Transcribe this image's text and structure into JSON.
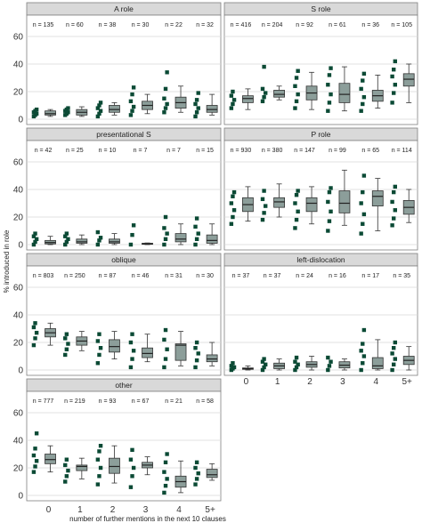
{
  "chart_data": {
    "type": "box",
    "ylabel": "% introduced in role",
    "xlabel": "number of further mentions in the next 10 clauses",
    "categories": [
      "0",
      "1",
      "2",
      "3",
      "4",
      "5+"
    ],
    "yticks": [
      0,
      20,
      40,
      60
    ],
    "ylim": [
      0,
      60
    ],
    "colors": {
      "box": "#8c9e9a",
      "points": "#0b4a35",
      "strip": "#d9d9d9"
    },
    "panels": [
      {
        "title": "A role",
        "n": [
          "n = 135",
          "n = 60",
          "n = 38",
          "n = 30",
          "n = 22",
          "n = 32"
        ],
        "boxes": [
          [
            2,
            3,
            4,
            6,
            7
          ],
          [
            2,
            3,
            5,
            7,
            9
          ],
          [
            3,
            5,
            7,
            10,
            12
          ],
          [
            4,
            7,
            10,
            13,
            18
          ],
          [
            5,
            8,
            12,
            16,
            24
          ],
          [
            3,
            5,
            7,
            10,
            18
          ]
        ],
        "points": [
          [
            2,
            3,
            4,
            5,
            6,
            7
          ],
          [
            3,
            4,
            5,
            6,
            7,
            8
          ],
          [
            2,
            4,
            6,
            8,
            10,
            12
          ],
          [
            3,
            6,
            9,
            13,
            18,
            23
          ],
          [
            5,
            8,
            11,
            15,
            22,
            34
          ],
          [
            2,
            5,
            8,
            11,
            14,
            19
          ]
        ]
      },
      {
        "title": "S role",
        "n": [
          "n = 416",
          "n = 204",
          "n = 92",
          "n = 61",
          "n = 36",
          "n = 105"
        ],
        "boxes": [
          [
            7,
            12,
            15,
            17,
            22
          ],
          [
            14,
            16,
            18,
            21,
            24
          ],
          [
            7,
            14,
            19,
            24,
            34
          ],
          [
            6,
            12,
            18,
            26,
            38
          ],
          [
            8,
            13,
            17,
            21,
            32
          ],
          [
            12,
            24,
            29,
            33,
            40
          ]
        ],
        "points": [
          [
            8,
            11,
            14,
            17,
            20
          ],
          [
            13,
            16,
            19,
            22,
            38
          ],
          [
            8,
            13,
            18,
            24,
            30,
            35
          ],
          [
            6,
            12,
            18,
            25,
            32,
            37
          ],
          [
            6,
            11,
            16,
            22,
            28,
            33
          ],
          [
            12,
            19,
            25,
            31,
            36,
            42
          ]
        ]
      },
      {
        "title": "presentational S",
        "n": [
          "n = 42",
          "n = 25",
          "n = 10",
          "n = 7",
          "n = 7",
          "n = 15"
        ],
        "boxes": [
          [
            0,
            0.5,
            1.5,
            3,
            6
          ],
          [
            0,
            1,
            2,
            4,
            7
          ],
          [
            0,
            1,
            2,
            4,
            8
          ],
          [
            0,
            0.2,
            0.5,
            1,
            1.2
          ],
          [
            0,
            2,
            4,
            8,
            15
          ],
          [
            0,
            1,
            3,
            7,
            15
          ]
        ],
        "points": [
          [
            0,
            2,
            4,
            6,
            8
          ],
          [
            0,
            2,
            4,
            6,
            8
          ],
          [
            0,
            3,
            5,
            9
          ],
          [
            0,
            7,
            14
          ],
          [
            0,
            4,
            8,
            12,
            20
          ],
          [
            0,
            4,
            8,
            13,
            19
          ]
        ]
      },
      {
        "title": "P role",
        "n": [
          "n = 930",
          "n = 380",
          "n = 147",
          "n = 99",
          "n = 65",
          "n = 114"
        ],
        "boxes": [
          [
            17,
            24,
            29,
            34,
            42
          ],
          [
            20,
            27,
            31,
            34,
            44
          ],
          [
            15,
            24,
            30,
            34,
            42
          ],
          [
            14,
            23,
            30,
            39,
            54
          ],
          [
            10,
            28,
            35,
            39,
            48
          ],
          [
            16,
            22,
            27,
            32,
            40
          ]
        ],
        "points": [
          [
            15,
            20,
            25,
            30,
            35,
            38
          ],
          [
            18,
            23,
            28,
            33,
            39
          ],
          [
            12,
            18,
            24,
            30,
            36,
            39
          ],
          [
            10,
            17,
            24,
            31,
            38,
            41
          ],
          [
            8,
            15,
            22,
            30,
            38,
            50
          ],
          [
            14,
            19,
            25,
            31,
            38,
            42
          ]
        ]
      },
      {
        "title": "oblique",
        "n": [
          "n = 803",
          "n = 250",
          "n = 87",
          "n = 46",
          "n = 31",
          "n = 30"
        ],
        "boxes": [
          [
            18,
            24,
            27,
            30,
            34
          ],
          [
            14,
            18,
            21,
            24,
            28
          ],
          [
            8,
            13,
            17,
            22,
            28
          ],
          [
            6,
            9,
            12,
            16,
            26
          ],
          [
            3,
            7,
            18,
            19,
            28
          ],
          [
            3,
            6,
            8,
            11,
            20
          ]
        ],
        "points": [
          [
            18,
            23,
            27,
            31,
            34
          ],
          [
            11,
            15,
            19,
            23,
            26
          ],
          [
            5,
            11,
            16,
            21,
            26
          ],
          [
            2,
            8,
            14,
            20,
            26
          ],
          [
            2,
            8,
            15,
            22,
            29
          ],
          [
            2,
            7,
            12,
            16,
            20
          ]
        ]
      },
      {
        "title": "left-dislocation",
        "n": [
          "n = 37",
          "n = 37",
          "n = 24",
          "n = 16",
          "n = 17",
          "n = 35"
        ],
        "boxes": [
          [
            0,
            0.5,
            1,
            1.5,
            3
          ],
          [
            0,
            1,
            3,
            5,
            8
          ],
          [
            0,
            2,
            4,
            6,
            10
          ],
          [
            0,
            1.5,
            3.5,
            6,
            8
          ],
          [
            0,
            1,
            3,
            9,
            22
          ],
          [
            0,
            4,
            7,
            10,
            17
          ]
        ],
        "points": [
          [
            0,
            1,
            2,
            3,
            5
          ],
          [
            0,
            2,
            4,
            6,
            8
          ],
          [
            0,
            2,
            4,
            6,
            9
          ],
          [
            0,
            3,
            6,
            9
          ],
          [
            0,
            5,
            10,
            14,
            19,
            29
          ],
          [
            0,
            4,
            8,
            12,
            16,
            20
          ]
        ]
      },
      {
        "title": "other",
        "n": [
          "n = 777",
          "n = 219",
          "n = 93",
          "n = 67",
          "n = 21",
          "n = 58"
        ],
        "boxes": [
          [
            17,
            23,
            26,
            30,
            36
          ],
          [
            12,
            18,
            21,
            22,
            27
          ],
          [
            9,
            16,
            21,
            27,
            36
          ],
          [
            15,
            20,
            22,
            24,
            28
          ],
          [
            2,
            6,
            10,
            14,
            25
          ],
          [
            11,
            13,
            15,
            19,
            23
          ]
        ],
        "points": [
          [
            17,
            21,
            25,
            29,
            34,
            45
          ],
          [
            10,
            14,
            18,
            22,
            26
          ],
          [
            8,
            14,
            20,
            26,
            32,
            36
          ],
          [
            6,
            14,
            20,
            26,
            33
          ],
          [
            2,
            7,
            12,
            17,
            24,
            30
          ],
          [
            8,
            12,
            16,
            20,
            24
          ]
        ]
      }
    ]
  }
}
